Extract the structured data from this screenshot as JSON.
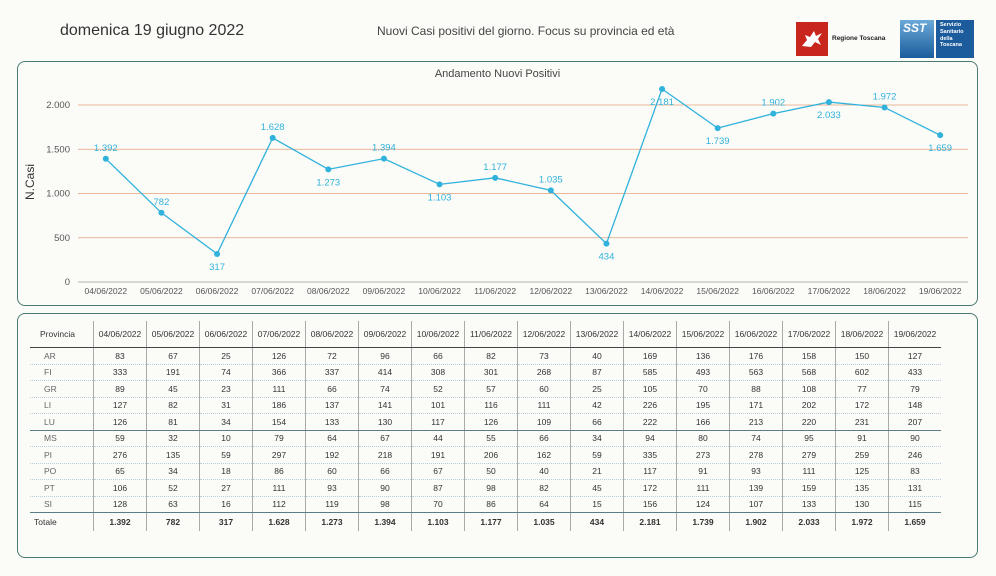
{
  "header": {
    "date": "domenica 19 giugno 2022",
    "subtitle": "Nuovi Casi positivi del giorno. Focus su provincia ed età",
    "logo_region": "Regione Toscana",
    "logo_sst_short": "SST",
    "logo_sst_full": "Servizio Sanitario della Toscana"
  },
  "colors": {
    "line": "#30b2dc",
    "gridline": "#e6a07a",
    "border": "#4a7a72",
    "region_red": "#c8261d",
    "sst_blue": "#1c5b9c"
  },
  "chart_data": {
    "type": "line",
    "title": "Andamento Nuovi Positivi",
    "ylabel": "N.Casi",
    "xlabel": "",
    "ylim": [
      0,
      2000
    ],
    "yticks": [
      0,
      500,
      1000,
      1500,
      2000
    ],
    "ytick_labels": [
      "0",
      "500",
      "1.000",
      "1.500",
      "2.000"
    ],
    "grid": true,
    "categories": [
      "04/06/2022",
      "05/06/2022",
      "06/06/2022",
      "07/06/2022",
      "08/06/2022",
      "09/06/2022",
      "10/06/2022",
      "11/06/2022",
      "12/06/2022",
      "13/06/2022",
      "14/06/2022",
      "15/06/2022",
      "16/06/2022",
      "17/06/2022",
      "18/06/2022",
      "19/06/2022"
    ],
    "values": [
      1392,
      782,
      317,
      1628,
      1273,
      1394,
      1103,
      1177,
      1035,
      434,
      2181,
      1739,
      1902,
      2033,
      1972,
      1659
    ],
    "labels": [
      "1.392",
      "782",
      "317",
      "1.628",
      "1.273",
      "1.394",
      "1.103",
      "1.177",
      "1.035",
      "434",
      "2.181",
      "1.739",
      "1.902",
      "2.033",
      "1.972",
      "1.659"
    ],
    "label_pos": [
      "above",
      "above",
      "below",
      "above",
      "below",
      "above",
      "below",
      "above",
      "above",
      "below",
      "below",
      "below",
      "above",
      "below",
      "above",
      "below"
    ]
  },
  "table": {
    "corner": "Provincia",
    "columns": [
      "04/06/2022",
      "05/06/2022",
      "06/06/2022",
      "07/06/2022",
      "08/06/2022",
      "09/06/2022",
      "10/06/2022",
      "11/06/2022",
      "12/06/2022",
      "13/06/2022",
      "14/06/2022",
      "15/06/2022",
      "16/06/2022",
      "17/06/2022",
      "18/06/2022",
      "19/06/2022"
    ],
    "rows": [
      {
        "prov": "AR",
        "values": [
          "83",
          "67",
          "25",
          "126",
          "72",
          "96",
          "66",
          "82",
          "73",
          "40",
          "169",
          "136",
          "176",
          "158",
          "150",
          "127"
        ]
      },
      {
        "prov": "FI",
        "values": [
          "333",
          "191",
          "74",
          "366",
          "337",
          "414",
          "308",
          "301",
          "268",
          "87",
          "585",
          "493",
          "563",
          "568",
          "602",
          "433"
        ]
      },
      {
        "prov": "GR",
        "values": [
          "89",
          "45",
          "23",
          "111",
          "66",
          "74",
          "52",
          "57",
          "60",
          "25",
          "105",
          "70",
          "88",
          "108",
          "77",
          "79"
        ]
      },
      {
        "prov": "LI",
        "values": [
          "127",
          "82",
          "31",
          "186",
          "137",
          "141",
          "101",
          "116",
          "111",
          "42",
          "226",
          "195",
          "171",
          "202",
          "172",
          "148"
        ]
      },
      {
        "prov": "LU",
        "values": [
          "126",
          "81",
          "34",
          "154",
          "133",
          "130",
          "117",
          "126",
          "109",
          "66",
          "222",
          "166",
          "213",
          "220",
          "231",
          "207"
        ]
      },
      {
        "prov": "MS",
        "values": [
          "59",
          "32",
          "10",
          "79",
          "64",
          "67",
          "44",
          "55",
          "66",
          "34",
          "94",
          "80",
          "74",
          "95",
          "91",
          "90"
        ]
      },
      {
        "prov": "PI",
        "values": [
          "276",
          "135",
          "59",
          "297",
          "192",
          "218",
          "191",
          "206",
          "162",
          "59",
          "335",
          "273",
          "278",
          "279",
          "259",
          "246"
        ]
      },
      {
        "prov": "PO",
        "values": [
          "65",
          "34",
          "18",
          "86",
          "60",
          "66",
          "67",
          "50",
          "40",
          "21",
          "117",
          "91",
          "93",
          "111",
          "125",
          "83"
        ]
      },
      {
        "prov": "PT",
        "values": [
          "106",
          "52",
          "27",
          "111",
          "93",
          "90",
          "87",
          "98",
          "82",
          "45",
          "172",
          "111",
          "139",
          "159",
          "135",
          "131"
        ]
      },
      {
        "prov": "SI",
        "values": [
          "128",
          "63",
          "16",
          "112",
          "119",
          "98",
          "70",
          "86",
          "64",
          "15",
          "156",
          "124",
          "107",
          "133",
          "130",
          "115"
        ]
      }
    ],
    "total": {
      "prov": "Totale",
      "values": [
        "1.392",
        "782",
        "317",
        "1.628",
        "1.273",
        "1.394",
        "1.103",
        "1.177",
        "1.035",
        "434",
        "2.181",
        "1.739",
        "1.902",
        "2.033",
        "1.972",
        "1.659"
      ]
    }
  }
}
